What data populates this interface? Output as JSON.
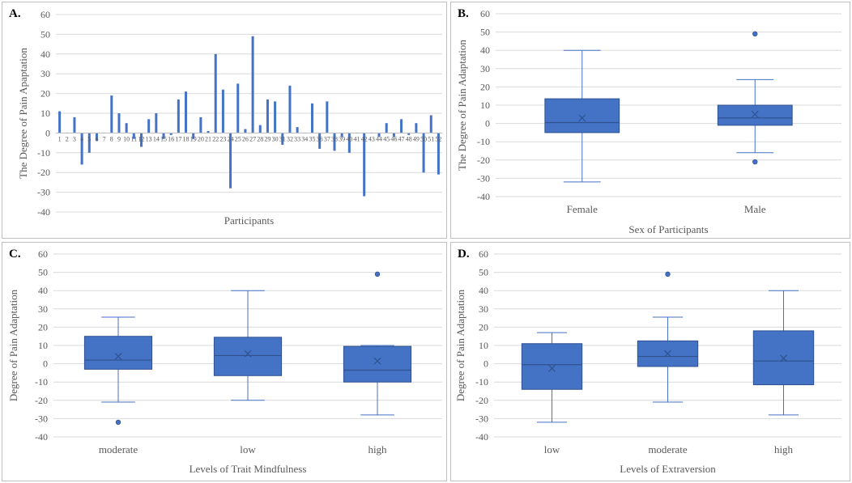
{
  "chart_data": [
    {
      "id": "A",
      "type": "bar",
      "panel_label": "A.",
      "xlabel": "Participants",
      "ylabel": "The Degree of  Pain Apaptation",
      "ylim": [
        -40,
        60
      ],
      "yticks": [
        -40,
        -30,
        -20,
        -10,
        0,
        10,
        20,
        30,
        40,
        50,
        60
      ],
      "bar_color": "#4472c4",
      "categories": [
        "1",
        "2",
        "3",
        "4",
        "5",
        "6",
        "7",
        "8",
        "9",
        "10",
        "11",
        "12",
        "13",
        "14",
        "15",
        "16",
        "17",
        "18",
        "19",
        "20",
        "21",
        "22",
        "23",
        "24",
        "25",
        "26",
        "27",
        "28",
        "29",
        "30",
        "31",
        "32",
        "33",
        "34",
        "35",
        "36",
        "37",
        "38",
        "39",
        "40",
        "41",
        "42",
        "43",
        "44",
        "45",
        "46",
        "47",
        "48",
        "49",
        "50",
        "51",
        "52"
      ],
      "values": [
        11,
        0,
        8,
        -16,
        -10,
        -4,
        0,
        19,
        10,
        5,
        -3,
        -7,
        7,
        10,
        -3,
        -1,
        17,
        21,
        -3,
        8,
        1,
        40,
        22,
        -28,
        25,
        2,
        49,
        4,
        17,
        16,
        -6,
        24,
        3,
        0,
        15,
        -8,
        16,
        -9,
        -2,
        -10,
        0,
        -32,
        0,
        -2,
        5,
        -2,
        7,
        -1,
        5,
        -20,
        9,
        -21
      ]
    },
    {
      "id": "B",
      "type": "box",
      "panel_label": "B.",
      "xlabel": "Sex of Participants",
      "ylabel": "The Degree of Pain Adaptation",
      "ylim": [
        -40,
        60
      ],
      "yticks": [
        -40,
        -30,
        -20,
        -10,
        0,
        10,
        20,
        30,
        40,
        50,
        60
      ],
      "box_color": "#4472c4",
      "groups": [
        {
          "name": "Female",
          "whisker_low": -32,
          "q1": -5,
          "median": 0.5,
          "q3": 13.5,
          "whisker_high": 40,
          "mean": 3,
          "outliers": []
        },
        {
          "name": "Male",
          "whisker_low": -16,
          "q1": -1,
          "median": 3,
          "q3": 10,
          "whisker_high": 24,
          "mean": 5,
          "outliers": [
            49,
            -21
          ]
        }
      ]
    },
    {
      "id": "C",
      "type": "box",
      "panel_label": "C.",
      "xlabel": "Levels  of Trait Mindfulness",
      "ylabel": "Degree of Pain Adaptation",
      "ylim": [
        -40,
        60
      ],
      "yticks": [
        -40,
        -30,
        -20,
        -10,
        0,
        10,
        20,
        30,
        40,
        50,
        60
      ],
      "box_color": "#4472c4",
      "groups": [
        {
          "name": "moderate",
          "whisker_low": -21,
          "q1": -3,
          "median": 2,
          "q3": 15,
          "whisker_high": 25.5,
          "mean": 4,
          "outliers": [
            -32
          ]
        },
        {
          "name": "low",
          "whisker_low": -20,
          "q1": -6.5,
          "median": 4.5,
          "q3": 14.5,
          "whisker_high": 40,
          "mean": 5.5,
          "outliers": []
        },
        {
          "name": "high",
          "whisker_low": -28,
          "q1": -10,
          "median": -3.5,
          "q3": 9.5,
          "whisker_high": 10,
          "mean": 1.5,
          "outliers": [
            49
          ]
        }
      ]
    },
    {
      "id": "D",
      "type": "box",
      "panel_label": "D.",
      "xlabel": "Levels  of Extraversion",
      "ylabel": "Degree of Pain Adaptation",
      "ylim": [
        -40,
        60
      ],
      "yticks": [
        -40,
        -30,
        -20,
        -10,
        0,
        10,
        20,
        30,
        40,
        50,
        60
      ],
      "box_color": "#4472c4",
      "groups": [
        {
          "name": "low",
          "whisker_low": -32,
          "q1": -14,
          "median": -0.5,
          "q3": 11,
          "whisker_high": 17,
          "mean": -2.5,
          "outliers": []
        },
        {
          "name": "moderate",
          "whisker_low": -21,
          "q1": -1.5,
          "median": 4,
          "q3": 12.5,
          "whisker_high": 25.5,
          "mean": 5.5,
          "outliers": [
            49
          ]
        },
        {
          "name": "high",
          "whisker_low": -28,
          "q1": -11.5,
          "median": 1.5,
          "q3": 18,
          "whisker_high": 40,
          "mean": 3,
          "outliers": []
        }
      ]
    }
  ]
}
